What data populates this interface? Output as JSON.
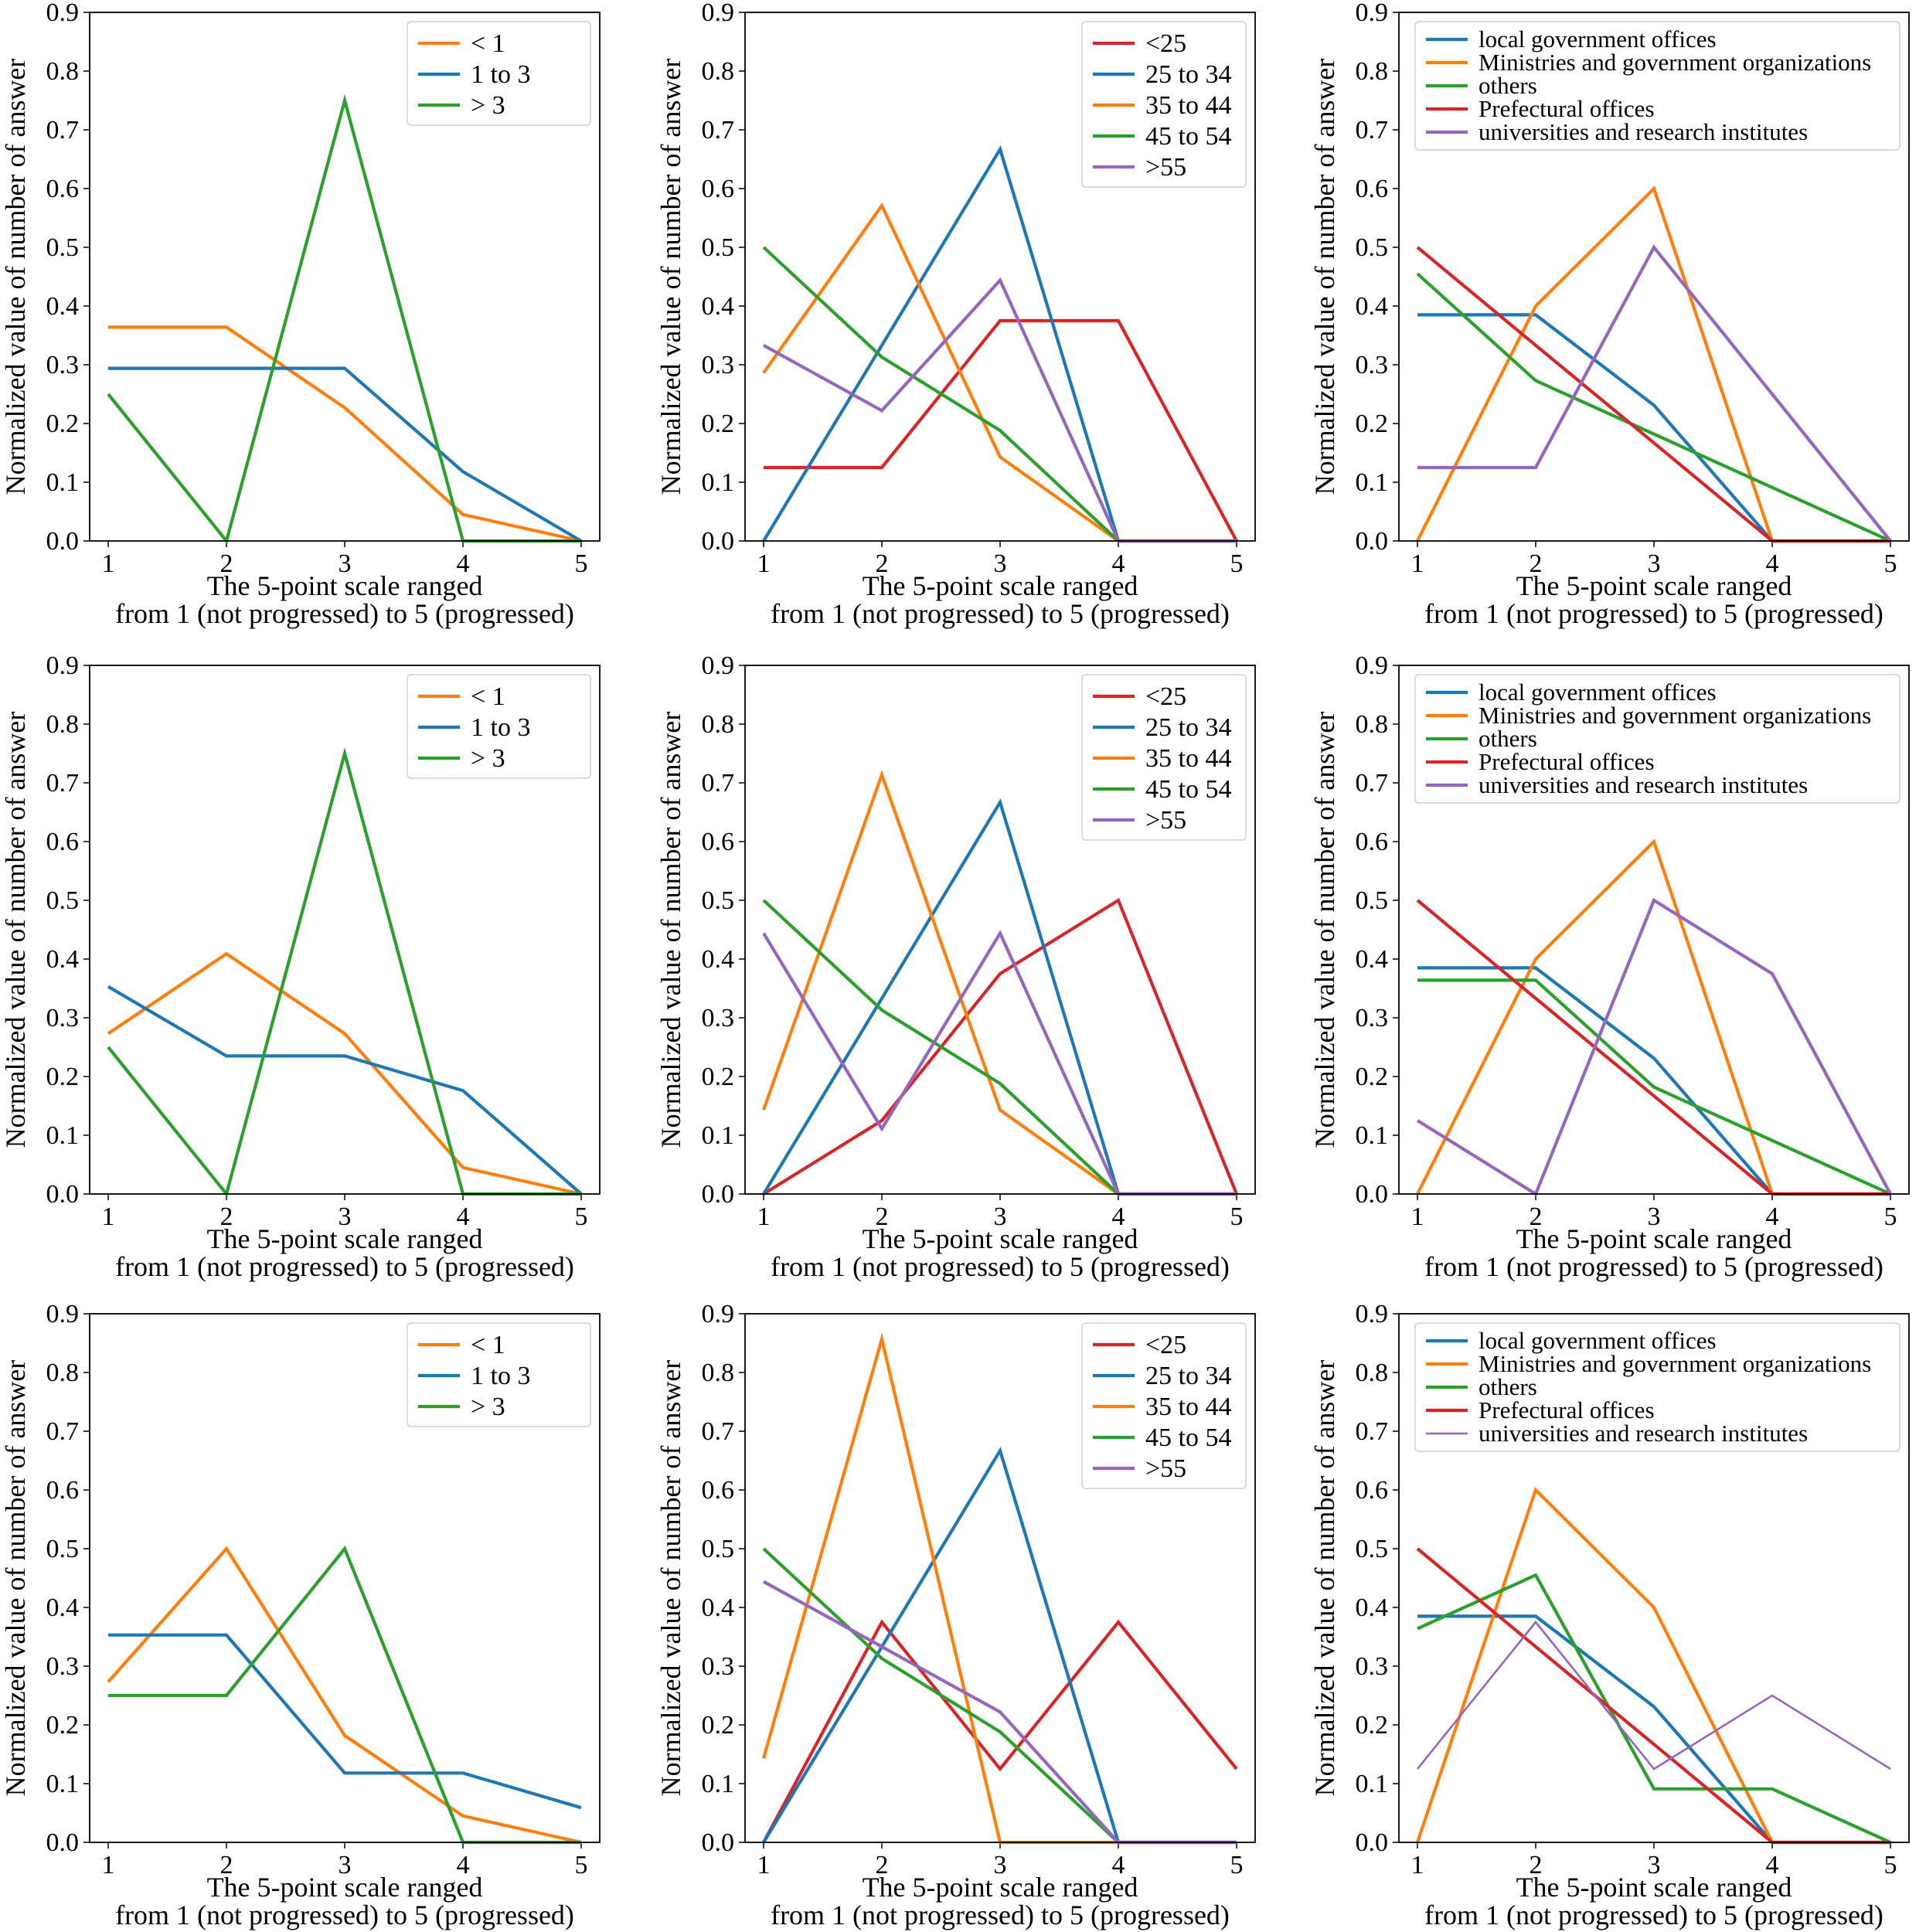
{
  "colors": {
    "blue": "#1f77b4",
    "orange": "#ff7f0e",
    "green": "#2ca02c",
    "red": "#d62728",
    "purple": "#9467bd"
  },
  "chart_data": [
    {
      "type": "line",
      "row": 0,
      "col": 0,
      "x": [
        1,
        2,
        3,
        4,
        5
      ],
      "xlim": [
        1,
        5
      ],
      "ylim": [
        0,
        0.9
      ],
      "xticks": [
        "1",
        "2",
        "3",
        "4",
        "5"
      ],
      "yticks": [
        "0.0",
        "0.1",
        "0.2",
        "0.3",
        "0.4",
        "0.5",
        "0.6",
        "0.7",
        "0.8",
        "0.9"
      ],
      "xlabel": [
        "The 5-point scale ranged",
        "from 1 (not progressed) to 5 (progressed)"
      ],
      "ylabel": "Normalized value of number of answer",
      "legend": "top-right",
      "series": [
        {
          "name": "< 1",
          "color": "orange",
          "values": [
            0.364,
            0.364,
            0.227,
            0.045,
            0.0
          ]
        },
        {
          "name": "1 to 3",
          "color": "blue",
          "values": [
            0.294,
            0.294,
            0.294,
            0.118,
            0.0
          ]
        },
        {
          "name": "> 3",
          "color": "green",
          "values": [
            0.25,
            0.0,
            0.75,
            0.0,
            0.0
          ]
        }
      ]
    },
    {
      "type": "line",
      "row": 0,
      "col": 1,
      "x": [
        1,
        2,
        3,
        4,
        5
      ],
      "xlim": [
        1,
        5
      ],
      "ylim": [
        0,
        0.9
      ],
      "xticks": [
        "1",
        "2",
        "3",
        "4",
        "5"
      ],
      "yticks": [
        "0.0",
        "0.1",
        "0.2",
        "0.3",
        "0.4",
        "0.5",
        "0.6",
        "0.7",
        "0.8",
        "0.9"
      ],
      "xlabel": [
        "The 5-point scale ranged",
        "from 1 (not progressed) to 5 (progressed)"
      ],
      "ylabel": "Normalized value of number of answer",
      "legend": "top-right",
      "series": [
        {
          "name": "<25",
          "color": "red",
          "values": [
            0.125,
            0.125,
            0.375,
            0.375,
            0.0
          ]
        },
        {
          "name": "25 to 34",
          "color": "blue",
          "values": [
            0.0,
            0.333,
            0.667,
            0.0,
            0.0
          ]
        },
        {
          "name": "35 to 44",
          "color": "orange",
          "values": [
            0.286,
            0.571,
            0.143,
            0.0,
            0.0
          ]
        },
        {
          "name": "45 to 54",
          "color": "green",
          "values": [
            0.5,
            0.313,
            0.188,
            0.0,
            0.0
          ]
        },
        {
          "name": ">55",
          "color": "purple",
          "values": [
            0.333,
            0.222,
            0.444,
            0.0,
            0.0
          ]
        }
      ]
    },
    {
      "type": "line",
      "row": 0,
      "col": 2,
      "x": [
        1,
        2,
        3,
        4,
        5
      ],
      "xlim": [
        1,
        5
      ],
      "ylim": [
        0,
        0.9
      ],
      "xticks": [
        "1",
        "2",
        "3",
        "4",
        "5"
      ],
      "yticks": [
        "0.0",
        "0.1",
        "0.2",
        "0.3",
        "0.4",
        "0.5",
        "0.6",
        "0.7",
        "0.8",
        "0.9"
      ],
      "xlabel": [
        "The 5-point scale ranged",
        "from 1 (not progressed) to 5 (progressed)"
      ],
      "ylabel": "Normalized value of number of answer",
      "legend": "top-right",
      "series": [
        {
          "name": "local government offices",
          "color": "blue",
          "values": [
            0.385,
            0.385,
            0.231,
            0.0,
            0.0
          ]
        },
        {
          "name": "Ministries and government organizations",
          "color": "orange",
          "values": [
            0.0,
            0.4,
            0.6,
            0.0,
            0.0
          ]
        },
        {
          "name": "others",
          "color": "green",
          "values": [
            0.455,
            0.273,
            0.182,
            0.091,
            0.0
          ]
        },
        {
          "name": "Prefectural offices",
          "color": "red",
          "values": [
            0.5,
            0.333,
            0.167,
            0.0,
            0.0
          ]
        },
        {
          "name": "universities and research institutes",
          "color": "purple",
          "values": [
            0.125,
            0.125,
            0.5,
            0.25,
            0.0
          ]
        }
      ]
    },
    {
      "type": "line",
      "row": 1,
      "col": 0,
      "x": [
        1,
        2,
        3,
        4,
        5
      ],
      "xlim": [
        1,
        5
      ],
      "ylim": [
        0,
        0.9
      ],
      "xticks": [
        "1",
        "2",
        "3",
        "4",
        "5"
      ],
      "yticks": [
        "0.0",
        "0.1",
        "0.2",
        "0.3",
        "0.4",
        "0.5",
        "0.6",
        "0.7",
        "0.8",
        "0.9"
      ],
      "xlabel": [
        "The 5-point scale ranged",
        "from 1 (not progressed) to 5 (progressed)"
      ],
      "ylabel": "Normalized value of number of answer",
      "legend": "top-right",
      "series": [
        {
          "name": "< 1",
          "color": "orange",
          "values": [
            0.273,
            0.409,
            0.273,
            0.045,
            0.0
          ]
        },
        {
          "name": "1 to 3",
          "color": "blue",
          "values": [
            0.353,
            0.235,
            0.235,
            0.176,
            0.0
          ]
        },
        {
          "name": "> 3",
          "color": "green",
          "values": [
            0.25,
            0.0,
            0.75,
            0.0,
            0.0
          ]
        }
      ]
    },
    {
      "type": "line",
      "row": 1,
      "col": 1,
      "x": [
        1,
        2,
        3,
        4,
        5
      ],
      "xlim": [
        1,
        5
      ],
      "ylim": [
        0,
        0.9
      ],
      "xticks": [
        "1",
        "2",
        "3",
        "4",
        "5"
      ],
      "yticks": [
        "0.0",
        "0.1",
        "0.2",
        "0.3",
        "0.4",
        "0.5",
        "0.6",
        "0.7",
        "0.8",
        "0.9"
      ],
      "xlabel": [
        "The 5-point scale ranged",
        "from 1 (not progressed) to 5 (progressed)"
      ],
      "ylabel": "Normalized value of number of answer",
      "legend": "top-right",
      "series": [
        {
          "name": "<25",
          "color": "red",
          "values": [
            0.0,
            0.125,
            0.375,
            0.5,
            0.0
          ]
        },
        {
          "name": "25 to 34",
          "color": "blue",
          "values": [
            0.0,
            0.333,
            0.667,
            0.0,
            0.0
          ]
        },
        {
          "name": "35 to 44",
          "color": "orange",
          "values": [
            0.143,
            0.714,
            0.143,
            0.0,
            0.0
          ]
        },
        {
          "name": "45 to 54",
          "color": "green",
          "values": [
            0.5,
            0.313,
            0.188,
            0.0,
            0.0
          ]
        },
        {
          "name": ">55",
          "color": "purple",
          "values": [
            0.444,
            0.111,
            0.444,
            0.0,
            0.0
          ]
        }
      ]
    },
    {
      "type": "line",
      "row": 1,
      "col": 2,
      "x": [
        1,
        2,
        3,
        4,
        5
      ],
      "xlim": [
        1,
        5
      ],
      "ylim": [
        0,
        0.9
      ],
      "xticks": [
        "1",
        "2",
        "3",
        "4",
        "5"
      ],
      "yticks": [
        "0.0",
        "0.1",
        "0.2",
        "0.3",
        "0.4",
        "0.5",
        "0.6",
        "0.7",
        "0.8",
        "0.9"
      ],
      "xlabel": [
        "The 5-point scale ranged",
        "from 1 (not progressed) to 5 (progressed)"
      ],
      "ylabel": "Normalized value of number of answer",
      "legend": "top-right",
      "series": [
        {
          "name": "local government offices",
          "color": "blue",
          "values": [
            0.385,
            0.385,
            0.231,
            0.0,
            0.0
          ]
        },
        {
          "name": "Ministries and government organizations",
          "color": "orange",
          "values": [
            0.0,
            0.4,
            0.6,
            0.0,
            0.0
          ]
        },
        {
          "name": "others",
          "color": "green",
          "values": [
            0.364,
            0.364,
            0.182,
            0.091,
            0.0
          ]
        },
        {
          "name": "Prefectural offices",
          "color": "red",
          "values": [
            0.5,
            0.333,
            0.167,
            0.0,
            0.0
          ]
        },
        {
          "name": "universities and research institutes",
          "color": "purple",
          "values": [
            0.125,
            0.0,
            0.5,
            0.375,
            0.0
          ]
        }
      ]
    },
    {
      "type": "line",
      "row": 2,
      "col": 0,
      "x": [
        1,
        2,
        3,
        4,
        5
      ],
      "xlim": [
        1,
        5
      ],
      "ylim": [
        0,
        0.9
      ],
      "xticks": [
        "1",
        "2",
        "3",
        "4",
        "5"
      ],
      "yticks": [
        "0.0",
        "0.1",
        "0.2",
        "0.3",
        "0.4",
        "0.5",
        "0.6",
        "0.7",
        "0.8",
        "0.9"
      ],
      "xlabel": [
        "The 5-point scale ranged",
        "from 1 (not progressed) to 5 (progressed)"
      ],
      "ylabel": "Normalized value of number of answer",
      "legend": "top-right",
      "series": [
        {
          "name": "< 1",
          "color": "orange",
          "values": [
            0.273,
            0.5,
            0.182,
            0.045,
            0.0
          ]
        },
        {
          "name": "1 to 3",
          "color": "blue",
          "values": [
            0.353,
            0.353,
            0.118,
            0.118,
            0.059
          ]
        },
        {
          "name": "> 3",
          "color": "green",
          "values": [
            0.25,
            0.25,
            0.5,
            0.0,
            0.0
          ]
        }
      ]
    },
    {
      "type": "line",
      "row": 2,
      "col": 1,
      "x": [
        1,
        2,
        3,
        4,
        5
      ],
      "xlim": [
        1,
        5
      ],
      "ylim": [
        0,
        0.9
      ],
      "xticks": [
        "1",
        "2",
        "3",
        "4",
        "5"
      ],
      "yticks": [
        "0.0",
        "0.1",
        "0.2",
        "0.3",
        "0.4",
        "0.5",
        "0.6",
        "0.7",
        "0.8",
        "0.9"
      ],
      "xlabel": [
        "The 5-point scale ranged",
        "from 1 (not progressed) to 5 (progressed)"
      ],
      "ylabel": "Normalized value of number of answer",
      "legend": "top-right",
      "series": [
        {
          "name": "<25",
          "color": "red",
          "values": [
            0.0,
            0.375,
            0.125,
            0.375,
            0.125
          ]
        },
        {
          "name": "25 to 34",
          "color": "blue",
          "values": [
            0.0,
            0.333,
            0.667,
            0.0,
            0.0
          ]
        },
        {
          "name": "35 to 44",
          "color": "orange",
          "values": [
            0.143,
            0.857,
            0.0,
            0.0,
            0.0
          ]
        },
        {
          "name": "45 to 54",
          "color": "green",
          "values": [
            0.5,
            0.313,
            0.188,
            0.0,
            0.0
          ]
        },
        {
          "name": ">55",
          "color": "purple",
          "values": [
            0.444,
            0.333,
            0.222,
            0.0,
            0.0
          ]
        }
      ]
    },
    {
      "type": "line",
      "row": 2,
      "col": 2,
      "x": [
        1,
        2,
        3,
        4,
        5
      ],
      "xlim": [
        1,
        5
      ],
      "ylim": [
        0,
        0.9
      ],
      "xticks": [
        "1",
        "2",
        "3",
        "4",
        "5"
      ],
      "yticks": [
        "0.0",
        "0.1",
        "0.2",
        "0.3",
        "0.4",
        "0.5",
        "0.6",
        "0.7",
        "0.8",
        "0.9"
      ],
      "xlabel": [
        "The 5-point scale ranged",
        "from 1 (not progressed) to 5 (progressed)"
      ],
      "ylabel": "Normalized value of number of answer",
      "legend": "top-right",
      "series": [
        {
          "name": "local government offices",
          "color": "blue",
          "values": [
            0.385,
            0.385,
            0.231,
            0.0,
            0.0
          ]
        },
        {
          "name": "Ministries and government organizations",
          "color": "orange",
          "values": [
            0.0,
            0.6,
            0.4,
            0.0,
            0.0
          ]
        },
        {
          "name": "others",
          "color": "green",
          "values": [
            0.364,
            0.455,
            0.091,
            0.091,
            0.0
          ]
        },
        {
          "name": "Prefectural offices",
          "color": "red",
          "values": [
            0.5,
            0.333,
            0.167,
            0.0,
            0.0
          ]
        },
        {
          "name": "universities and research institutes",
          "color": "purple",
          "thin": true,
          "values": [
            0.125,
            0.375,
            0.125,
            0.25,
            0.125
          ]
        }
      ]
    }
  ]
}
